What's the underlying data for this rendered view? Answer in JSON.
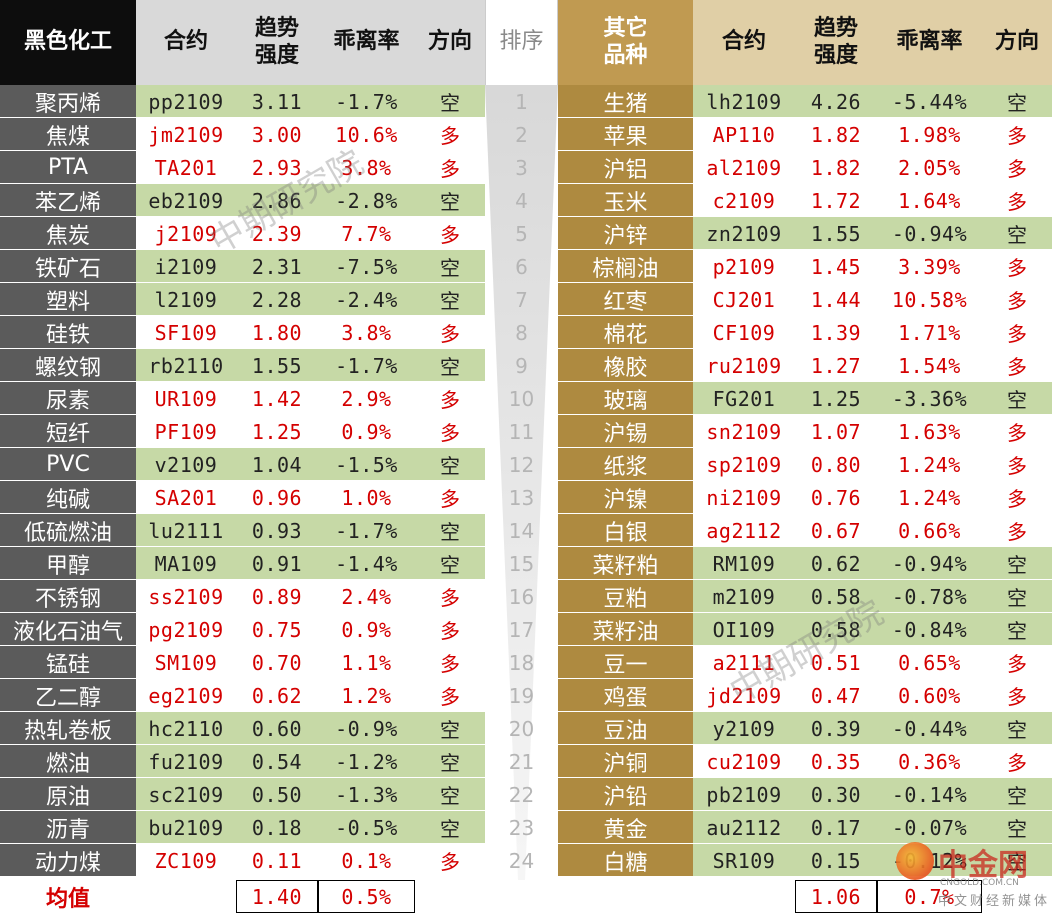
{
  "headers": {
    "left_group": "黑色化工",
    "contract": "合约",
    "strength": "趋势\n强度",
    "deviation": "乖离率",
    "direction": "方向",
    "rank": "排序",
    "right_group": "其它\n品种",
    "contract_r": "合约",
    "strength_r": "趋势\n强度",
    "deviation_r": "乖离率",
    "direction_r": "方向"
  },
  "rows": [
    {
      "rank": "1",
      "l": {
        "name": "聚丙烯",
        "contract": "pp2109",
        "strength": "3.11",
        "dev": "-1.7%",
        "dir": "空"
      },
      "r": {
        "name": "生猪",
        "contract": "lh2109",
        "strength": "4.26",
        "dev": "-5.44%",
        "dir": "空"
      }
    },
    {
      "rank": "2",
      "l": {
        "name": "焦煤",
        "contract": "jm2109",
        "strength": "3.00",
        "dev": "10.6%",
        "dir": "多"
      },
      "r": {
        "name": "苹果",
        "contract": "AP110",
        "strength": "1.82",
        "dev": "1.98%",
        "dir": "多"
      }
    },
    {
      "rank": "3",
      "l": {
        "name": "PTA",
        "contract": "TA201",
        "strength": "2.93",
        "dev": "3.8%",
        "dir": "多"
      },
      "r": {
        "name": "沪铝",
        "contract": "al2109",
        "strength": "1.82",
        "dev": "2.05%",
        "dir": "多"
      }
    },
    {
      "rank": "4",
      "l": {
        "name": "苯乙烯",
        "contract": "eb2109",
        "strength": "2.86",
        "dev": "-2.8%",
        "dir": "空"
      },
      "r": {
        "name": "玉米",
        "contract": "c2109",
        "strength": "1.72",
        "dev": "1.64%",
        "dir": "多"
      }
    },
    {
      "rank": "5",
      "l": {
        "name": "焦炭",
        "contract": "j2109",
        "strength": "2.39",
        "dev": "7.7%",
        "dir": "多"
      },
      "r": {
        "name": "沪锌",
        "contract": "zn2109",
        "strength": "1.55",
        "dev": "-0.94%",
        "dir": "空"
      }
    },
    {
      "rank": "6",
      "l": {
        "name": "铁矿石",
        "contract": "i2109",
        "strength": "2.31",
        "dev": "-7.5%",
        "dir": "空"
      },
      "r": {
        "name": "棕榈油",
        "contract": "p2109",
        "strength": "1.45",
        "dev": "3.39%",
        "dir": "多"
      }
    },
    {
      "rank": "7",
      "l": {
        "name": "塑料",
        "contract": "l2109",
        "strength": "2.28",
        "dev": "-2.4%",
        "dir": "空"
      },
      "r": {
        "name": "红枣",
        "contract": "CJ201",
        "strength": "1.44",
        "dev": "10.58%",
        "dir": "多"
      }
    },
    {
      "rank": "8",
      "l": {
        "name": "硅铁",
        "contract": "SF109",
        "strength": "1.80",
        "dev": "3.8%",
        "dir": "多"
      },
      "r": {
        "name": "棉花",
        "contract": "CF109",
        "strength": "1.39",
        "dev": "1.71%",
        "dir": "多"
      }
    },
    {
      "rank": "9",
      "l": {
        "name": "螺纹钢",
        "contract": "rb2110",
        "strength": "1.55",
        "dev": "-1.7%",
        "dir": "空"
      },
      "r": {
        "name": "橡胶",
        "contract": "ru2109",
        "strength": "1.27",
        "dev": "1.54%",
        "dir": "多"
      }
    },
    {
      "rank": "10",
      "l": {
        "name": "尿素",
        "contract": "UR109",
        "strength": "1.42",
        "dev": "2.9%",
        "dir": "多"
      },
      "r": {
        "name": "玻璃",
        "contract": "FG201",
        "strength": "1.25",
        "dev": "-3.36%",
        "dir": "空"
      }
    },
    {
      "rank": "11",
      "l": {
        "name": "短纤",
        "contract": "PF109",
        "strength": "1.25",
        "dev": "0.9%",
        "dir": "多"
      },
      "r": {
        "name": "沪锡",
        "contract": "sn2109",
        "strength": "1.07",
        "dev": "1.63%",
        "dir": "多"
      }
    },
    {
      "rank": "12",
      "l": {
        "name": "PVC",
        "contract": "v2109",
        "strength": "1.04",
        "dev": "-1.5%",
        "dir": "空"
      },
      "r": {
        "name": "纸浆",
        "contract": "sp2109",
        "strength": "0.80",
        "dev": "1.24%",
        "dir": "多"
      }
    },
    {
      "rank": "13",
      "l": {
        "name": "纯碱",
        "contract": "SA201",
        "strength": "0.96",
        "dev": "1.0%",
        "dir": "多"
      },
      "r": {
        "name": "沪镍",
        "contract": "ni2109",
        "strength": "0.76",
        "dev": "1.24%",
        "dir": "多"
      }
    },
    {
      "rank": "14",
      "l": {
        "name": "低硫燃油",
        "contract": "lu2111",
        "strength": "0.93",
        "dev": "-1.7%",
        "dir": "空"
      },
      "r": {
        "name": "白银",
        "contract": "ag2112",
        "strength": "0.67",
        "dev": "0.66%",
        "dir": "多"
      }
    },
    {
      "rank": "15",
      "l": {
        "name": "甲醇",
        "contract": "MA109",
        "strength": "0.91",
        "dev": "-1.4%",
        "dir": "空"
      },
      "r": {
        "name": "菜籽粕",
        "contract": "RM109",
        "strength": "0.62",
        "dev": "-0.94%",
        "dir": "空"
      }
    },
    {
      "rank": "16",
      "l": {
        "name": "不锈钢",
        "contract": "ss2109",
        "strength": "0.89",
        "dev": "2.4%",
        "dir": "多"
      },
      "r": {
        "name": "豆粕",
        "contract": "m2109",
        "strength": "0.58",
        "dev": "-0.78%",
        "dir": "空"
      }
    },
    {
      "rank": "17",
      "l": {
        "name": "液化石油气",
        "contract": "pg2109",
        "strength": "0.75",
        "dev": "0.9%",
        "dir": "多"
      },
      "r": {
        "name": "菜籽油",
        "contract": "OI109",
        "strength": "0.58",
        "dev": "-0.84%",
        "dir": "空"
      }
    },
    {
      "rank": "18",
      "l": {
        "name": "锰硅",
        "contract": "SM109",
        "strength": "0.70",
        "dev": "1.1%",
        "dir": "多"
      },
      "r": {
        "name": "豆一",
        "contract": "a2111",
        "strength": "0.51",
        "dev": "0.65%",
        "dir": "多"
      }
    },
    {
      "rank": "19",
      "l": {
        "name": "乙二醇",
        "contract": "eg2109",
        "strength": "0.62",
        "dev": "1.2%",
        "dir": "多"
      },
      "r": {
        "name": "鸡蛋",
        "contract": "jd2109",
        "strength": "0.47",
        "dev": "0.60%",
        "dir": "多"
      }
    },
    {
      "rank": "20",
      "l": {
        "name": "热轧卷板",
        "contract": "hc2110",
        "strength": "0.60",
        "dev": "-0.9%",
        "dir": "空"
      },
      "r": {
        "name": "豆油",
        "contract": "y2109",
        "strength": "0.39",
        "dev": "-0.44%",
        "dir": "空"
      }
    },
    {
      "rank": "21",
      "l": {
        "name": "燃油",
        "contract": "fu2109",
        "strength": "0.54",
        "dev": "-1.2%",
        "dir": "空"
      },
      "r": {
        "name": "沪铜",
        "contract": "cu2109",
        "strength": "0.35",
        "dev": "0.36%",
        "dir": "多"
      }
    },
    {
      "rank": "22",
      "l": {
        "name": "原油",
        "contract": "sc2109",
        "strength": "0.50",
        "dev": "-1.3%",
        "dir": "空"
      },
      "r": {
        "name": "沪铅",
        "contract": "pb2109",
        "strength": "0.30",
        "dev": "-0.14%",
        "dir": "空"
      }
    },
    {
      "rank": "23",
      "l": {
        "name": "沥青",
        "contract": "bu2109",
        "strength": "0.18",
        "dev": "-0.5%",
        "dir": "空"
      },
      "r": {
        "name": "黄金",
        "contract": "au2112",
        "strength": "0.17",
        "dev": "-0.07%",
        "dir": "空"
      }
    },
    {
      "rank": "24",
      "l": {
        "name": "动力煤",
        "contract": "ZC109",
        "strength": "0.11",
        "dev": "0.1%",
        "dir": "多"
      },
      "r": {
        "name": "白糖",
        "contract": "SR109",
        "strength": "0.15",
        "dev": "-0.12%",
        "dir": "空"
      }
    }
  ],
  "average": {
    "label": "均值",
    "left_strength": "1.40",
    "left_dev": "0.5%",
    "right_strength": "1.06",
    "right_dev": "0.7%"
  },
  "watermark": "中期研究院",
  "logo": {
    "brand": "中金网",
    "url": "CNGOLD.COM.CN",
    "slogan": "中文财经新媒体"
  },
  "colors": {
    "long_text": "#d40000",
    "short_row_bg": "#c6d9a6",
    "left_name_bg": "#5b5b5b",
    "right_name_bg": "#ae8a40",
    "left_header_bg": "#0d0d0d",
    "right_header_bg": "#c09a51"
  }
}
